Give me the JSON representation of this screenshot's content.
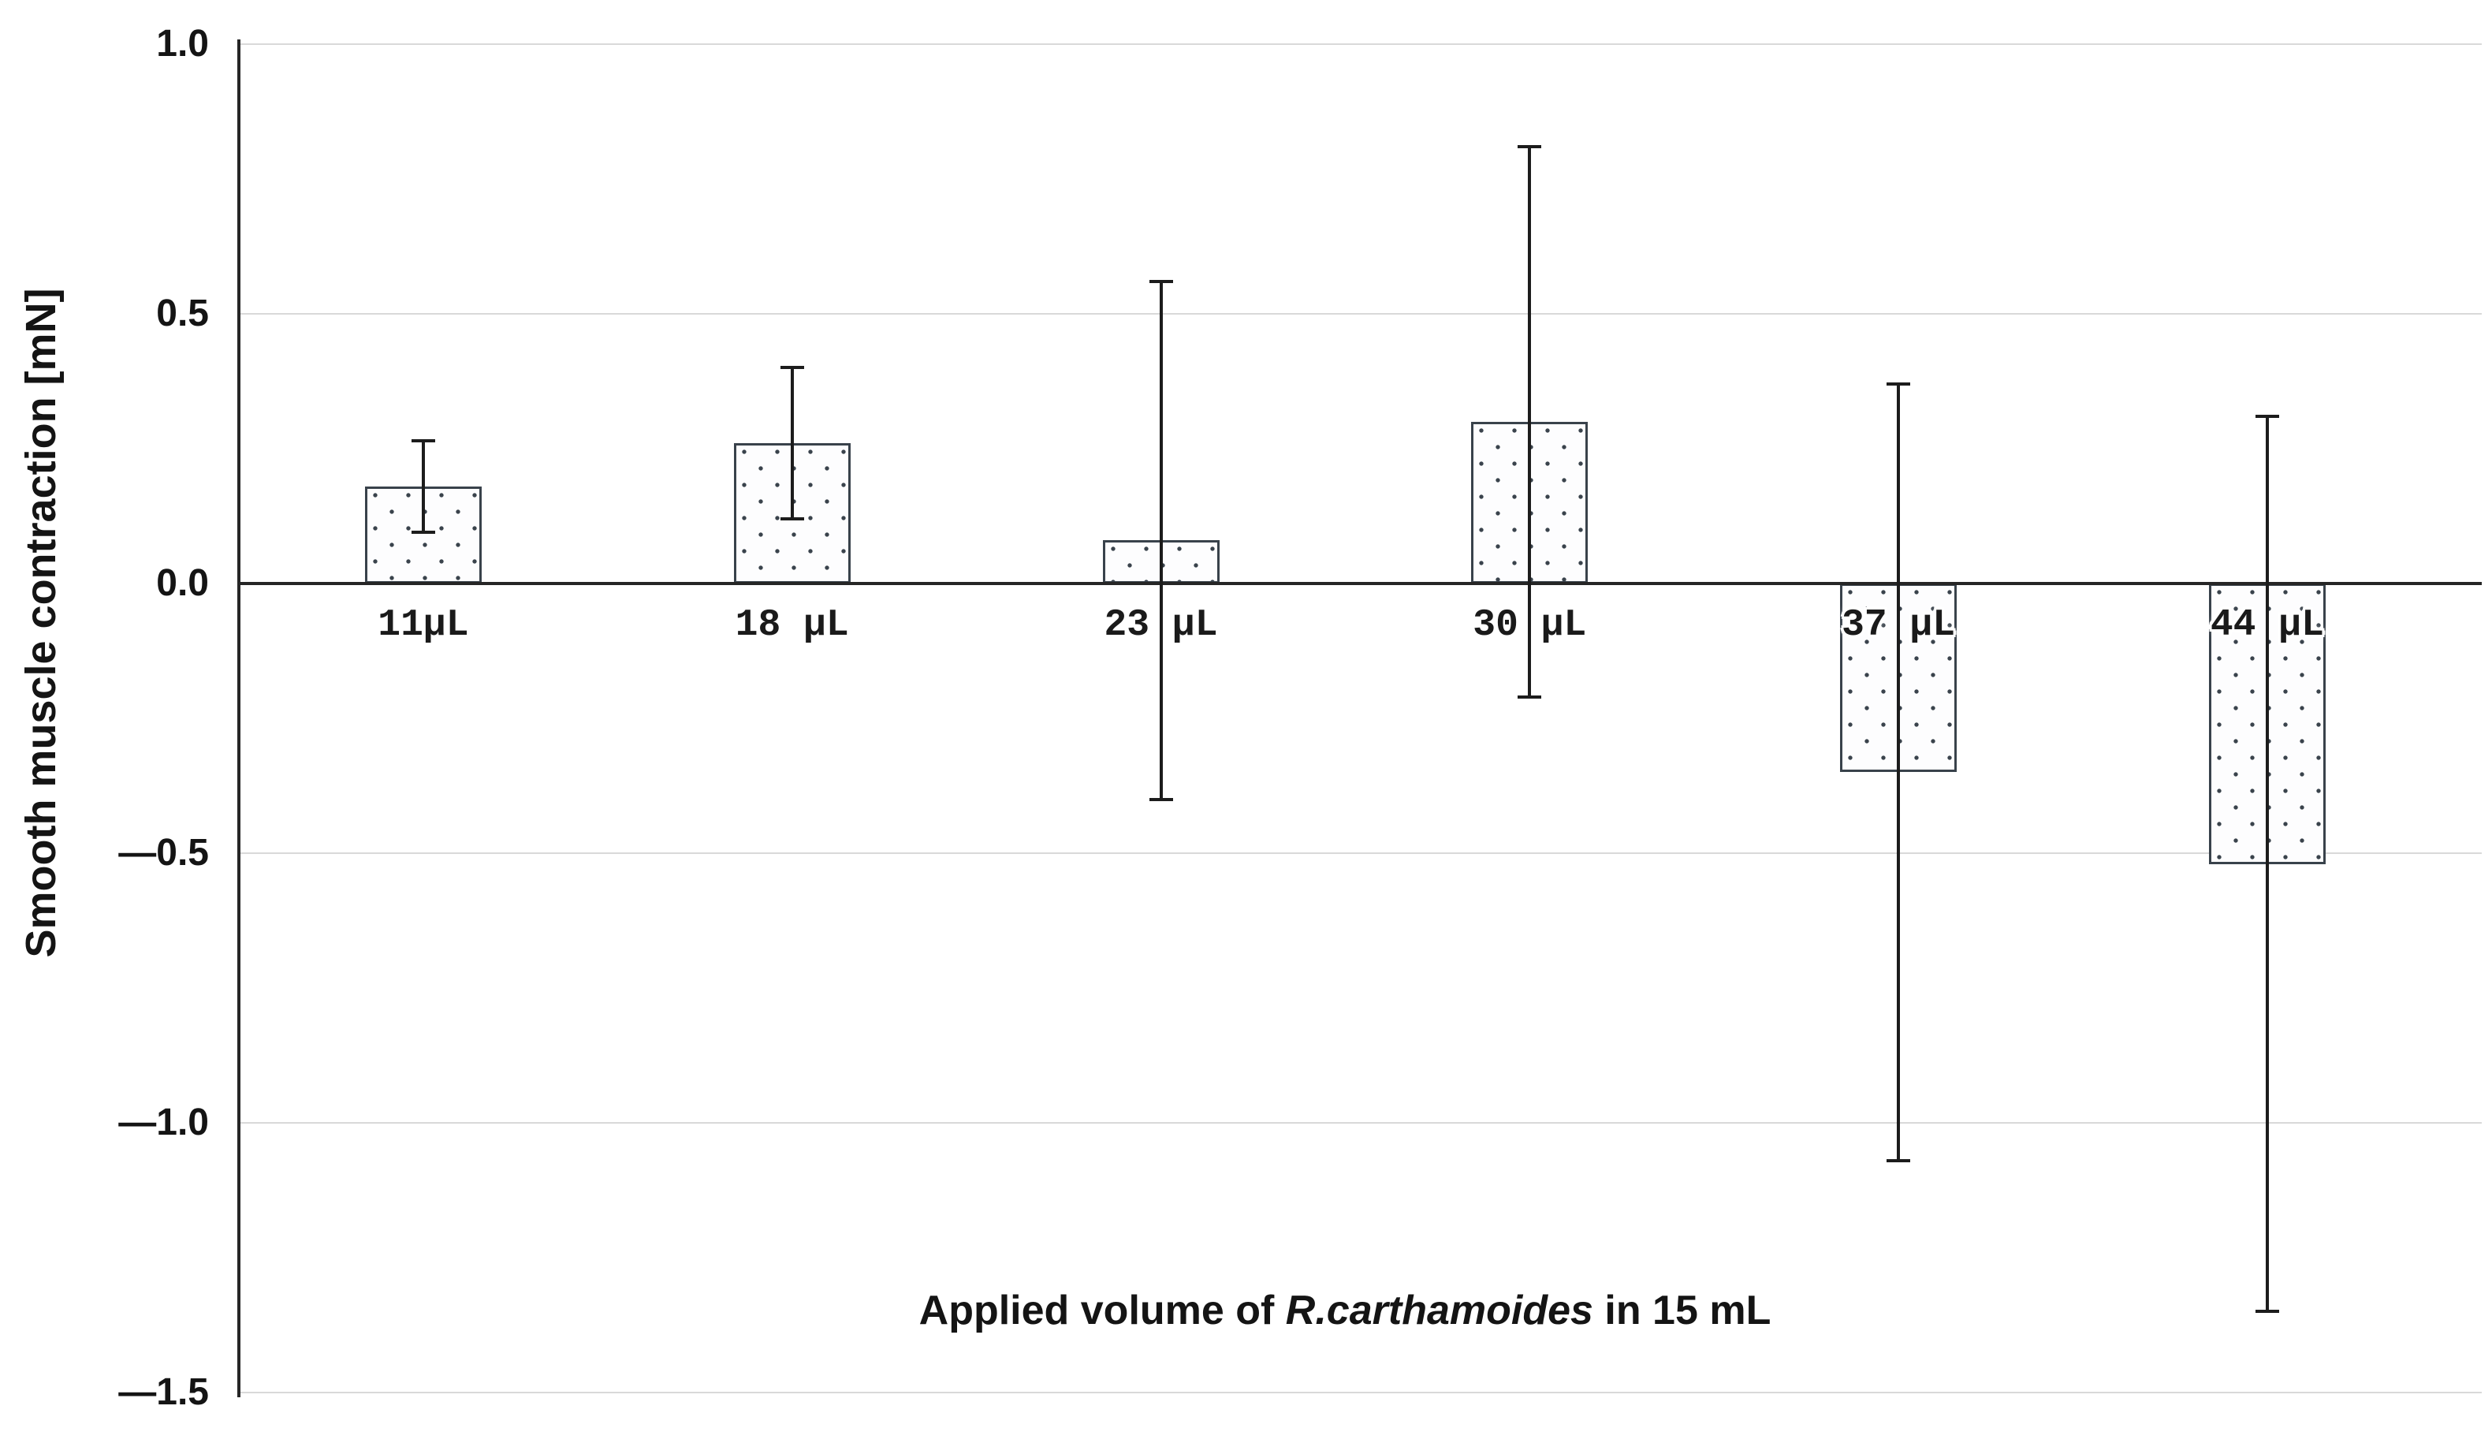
{
  "chart_data": {
    "type": "bar",
    "title": "",
    "categories": [
      "11µL",
      "18 µL",
      "23 µL",
      "30 µL",
      "37 µL",
      "44 µL"
    ],
    "values": [
      0.18,
      0.26,
      0.08,
      0.3,
      -0.35,
      -0.52
    ],
    "errors": [
      0.085,
      0.14,
      0.48,
      0.51,
      0.72,
      0.83
    ],
    "error_bar_style": "plus-minus-symmetric",
    "ylabel": "Smooth muscle contraction [mN]",
    "xlabel": "Applied volume of R.carthamoides in 15 mL",
    "xlabel_parts": {
      "prefix": "Applied volume of ",
      "species": "R.carthamoides",
      "suffix": " in 15 mL"
    },
    "ylim": [
      -1.5,
      1.0
    ],
    "ytick_interval": 0.5,
    "yticks": [
      {
        "value": 1.0,
        "label": "1.0"
      },
      {
        "value": 0.5,
        "label": "0.5"
      },
      {
        "value": 0.0,
        "label": "0.0"
      },
      {
        "value": -0.5,
        "label": "—0.5"
      },
      {
        "value": -1.0,
        "label": "—1.0"
      },
      {
        "value": -1.5,
        "label": "—1.5"
      }
    ],
    "grid": "horizontal",
    "legend": "none",
    "colors": {
      "bar_fill": "#fdfdfe",
      "bar_dot": "#3a434c",
      "bar_border": "#39424b",
      "error_bar": "#1c1c1c",
      "axis": "#262626",
      "gridline": "#d9d9d9",
      "text": "#141414"
    }
  }
}
